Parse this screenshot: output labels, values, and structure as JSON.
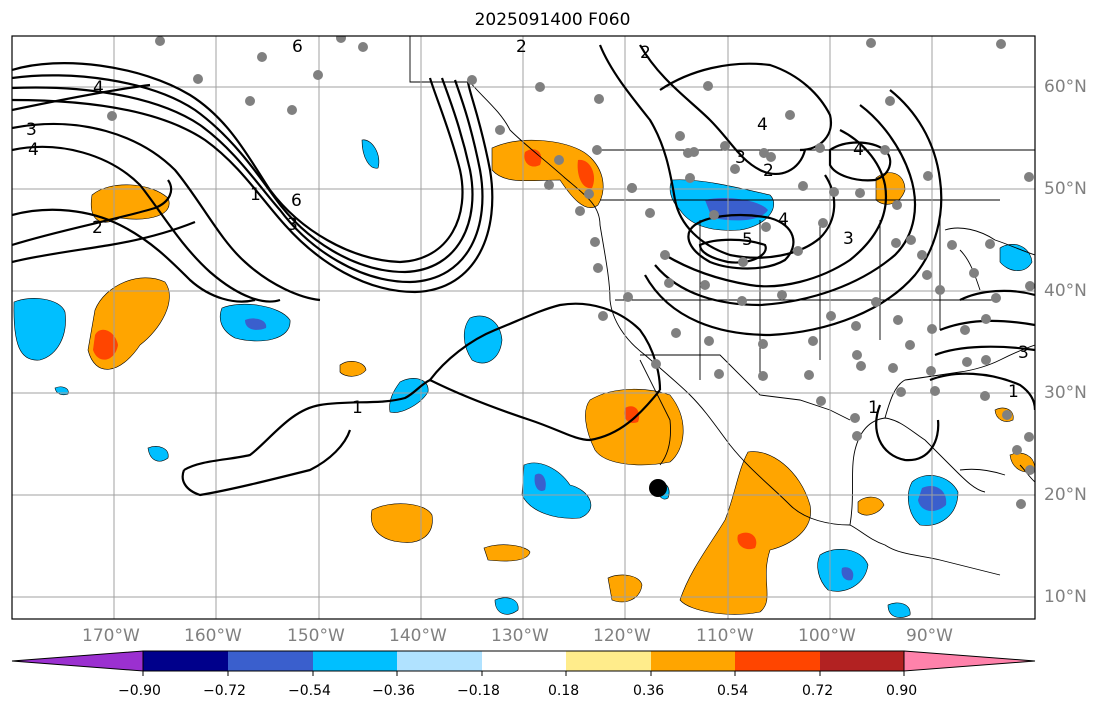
{
  "title": "2025091400 F060",
  "lat_labels": [
    "60°N",
    "50°N",
    "40°N",
    "30°N",
    "20°N",
    "10°N"
  ],
  "lon_labels": [
    "170°W",
    "160°W",
    "150°W",
    "140°W",
    "130°W",
    "120°W",
    "110°W",
    "100°W",
    "90°W"
  ],
  "contour_labels": [
    "1",
    "2",
    "3",
    "4",
    "5",
    "6"
  ],
  "colorbar": {
    "tick_labels": [
      "−0.90",
      "−0.72",
      "−0.54",
      "−0.36",
      "−0.18",
      "0.18",
      "0.36",
      "0.54",
      "0.72",
      "0.90"
    ],
    "colors": [
      "#9b30d0",
      "#00008b",
      "#3a5fcd",
      "#00bfff",
      "#b0e2ff",
      "#ffffff",
      "#ffec8b",
      "#ffa500",
      "#ff4500",
      "#b22222",
      "#ff82ab"
    ]
  },
  "colors": {
    "orange": "#ffa500",
    "red_orange": "#ff4500",
    "light_blue": "#00bfff",
    "blue": "#3a5fcd",
    "station_dot": "#808080",
    "grid": "#a0a0a0"
  }
}
